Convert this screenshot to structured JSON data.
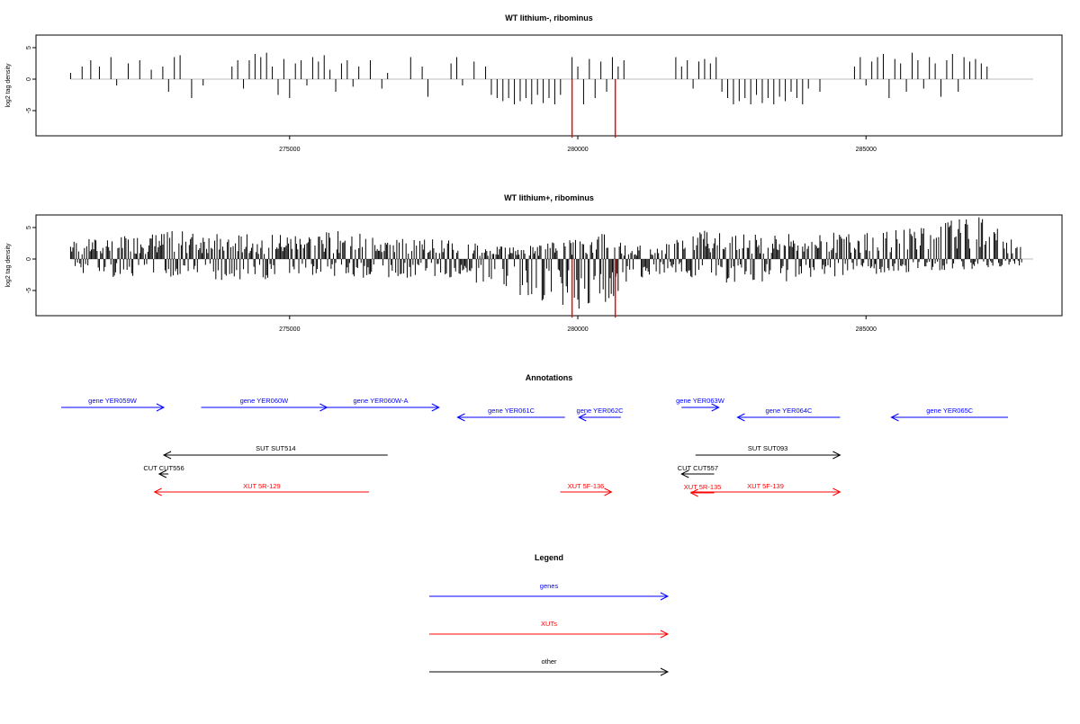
{
  "chart_data": [
    {
      "type": "bar",
      "title": "WT lithium-, ribominus",
      "ylabel": "log2 tag density",
      "xlabel": "",
      "xlim": [
        270600,
        288400
      ],
      "ylim": [
        -9,
        7
      ],
      "yticks": [
        5,
        0,
        -5
      ],
      "xticks": [
        275000,
        280000,
        285000
      ],
      "xtick_labels": [
        "275000",
        "280000",
        "285000"
      ],
      "baseline": {
        "from": 271200,
        "to": 287900
      },
      "series": [
        {
          "color": "#000000",
          "values": "sparse black spikes between ~271200 and ~287100, positive and negative, mostly within -5..+4",
          "sampled": [
            [
              271200,
              1
            ],
            [
              271400,
              2
            ],
            [
              271550,
              3
            ],
            [
              271700,
              2
            ],
            [
              271900,
              3.5
            ],
            [
              272000,
              -1
            ],
            [
              272200,
              2.5
            ],
            [
              272400,
              3
            ],
            [
              272600,
              1.5
            ],
            [
              272800,
              2
            ],
            [
              272900,
              -2
            ],
            [
              273000,
              3.5
            ],
            [
              273100,
              3.8
            ],
            [
              273300,
              -3
            ],
            [
              273500,
              -1
            ],
            [
              274000,
              2
            ],
            [
              274100,
              3
            ],
            [
              274200,
              -1.5
            ],
            [
              274300,
              3
            ],
            [
              274400,
              4
            ],
            [
              274500,
              3.5
            ],
            [
              274600,
              4.2
            ],
            [
              274700,
              2
            ],
            [
              274800,
              -2.5
            ],
            [
              274900,
              3.2
            ],
            [
              275000,
              -3
            ],
            [
              275100,
              2.5
            ],
            [
              275200,
              3
            ],
            [
              275300,
              -1
            ],
            [
              275400,
              3.5
            ],
            [
              275500,
              2.8
            ],
            [
              275600,
              3.8
            ],
            [
              275700,
              1.5
            ],
            [
              275800,
              -2
            ],
            [
              275900,
              2.5
            ],
            [
              276000,
              3
            ],
            [
              276100,
              -1.2
            ],
            [
              276200,
              2
            ],
            [
              276400,
              3
            ],
            [
              276600,
              -1.5
            ],
            [
              276700,
              1
            ],
            [
              277100,
              3.5
            ],
            [
              277300,
              2
            ],
            [
              277400,
              -2.8
            ],
            [
              277800,
              2.5
            ],
            [
              277900,
              3.5
            ],
            [
              278000,
              -1
            ],
            [
              278200,
              2.8
            ],
            [
              278400,
              2
            ],
            [
              278500,
              -2.5
            ],
            [
              278600,
              -3
            ],
            [
              278700,
              -3.5
            ],
            [
              278800,
              -3
            ],
            [
              278900,
              -4
            ],
            [
              279000,
              -3.5
            ],
            [
              279100,
              -3
            ],
            [
              279200,
              -4
            ],
            [
              279300,
              -2.5
            ],
            [
              279400,
              -3.8
            ],
            [
              279500,
              -3
            ],
            [
              279600,
              -4
            ],
            [
              279700,
              -2.5
            ],
            [
              279900,
              3.5
            ],
            [
              280000,
              2
            ],
            [
              280100,
              -4
            ],
            [
              280200,
              3.2
            ],
            [
              280300,
              -3
            ],
            [
              280400,
              2.8
            ],
            [
              280500,
              -2
            ],
            [
              280600,
              3.5
            ],
            [
              280700,
              2
            ],
            [
              280800,
              3
            ],
            [
              281700,
              3.5
            ],
            [
              281800,
              2
            ],
            [
              281900,
              3
            ],
            [
              282000,
              -1.5
            ],
            [
              282100,
              2.8
            ],
            [
              282200,
              3.2
            ],
            [
              282300,
              2.5
            ],
            [
              282400,
              3.5
            ],
            [
              282500,
              -2
            ],
            [
              282600,
              -3
            ],
            [
              282700,
              -4
            ],
            [
              282800,
              -3.5
            ],
            [
              282900,
              -3
            ],
            [
              283000,
              -4
            ],
            [
              283100,
              -2.5
            ],
            [
              283200,
              -3.8
            ],
            [
              283300,
              -3
            ],
            [
              283400,
              -4
            ],
            [
              283500,
              -2.8
            ],
            [
              283600,
              -3.5
            ],
            [
              283700,
              -2
            ],
            [
              283800,
              -3
            ],
            [
              283900,
              -4
            ],
            [
              284000,
              -1.5
            ],
            [
              284200,
              -2
            ],
            [
              284800,
              2
            ],
            [
              284900,
              3.5
            ],
            [
              285000,
              -1
            ],
            [
              285100,
              2.8
            ],
            [
              285200,
              3.5
            ],
            [
              285300,
              4
            ],
            [
              285400,
              -3
            ],
            [
              285500,
              3.2
            ],
            [
              285600,
              2.5
            ],
            [
              285700,
              -2
            ],
            [
              285800,
              4.2
            ],
            [
              285900,
              3
            ],
            [
              286000,
              -1.5
            ],
            [
              286100,
              3.5
            ],
            [
              286200,
              2.5
            ],
            [
              286300,
              -2.8
            ],
            [
              286400,
              3
            ],
            [
              286500,
              4
            ],
            [
              286600,
              -2
            ],
            [
              286700,
              3.5
            ],
            [
              286800,
              2.8
            ],
            [
              286900,
              3.2
            ],
            [
              287000,
              2.5
            ],
            [
              287100,
              2
            ]
          ]
        },
        {
          "color": "#ff0000",
          "values": [
            [
              279900,
              -9.3
            ],
            [
              280650,
              -9.3
            ]
          ]
        }
      ]
    },
    {
      "type": "bar",
      "title": "WT lithium+, ribominus",
      "ylabel": "log2 tag density",
      "xlabel": "",
      "xlim": [
        270600,
        288400
      ],
      "ylim": [
        -9,
        7
      ],
      "yticks": [
        5,
        0,
        -5
      ],
      "xticks": [
        275000,
        280000,
        285000
      ],
      "xtick_labels": [
        "275000",
        "280000",
        "285000"
      ],
      "baseline": {
        "from": 271200,
        "to": 287900
      },
      "series": [
        {
          "color": "#000000",
          "values": "dense black spikes across the region, mostly within -6..+5, up to +7 near 287000",
          "profile": [
            [
              271200,
              3,
              -2
            ],
            [
              272000,
              3.5,
              -3
            ],
            [
              273000,
              4.5,
              -3
            ],
            [
              274000,
              4,
              -3.5
            ],
            [
              275000,
              4,
              -3
            ],
            [
              276000,
              4.5,
              -3
            ],
            [
              277000,
              3.5,
              -3
            ],
            [
              278000,
              3,
              -3
            ],
            [
              278500,
              2,
              -5
            ],
            [
              279000,
              2,
              -6
            ],
            [
              279800,
              3,
              -8
            ],
            [
              280500,
              4.5,
              -8.5
            ],
            [
              280900,
              2,
              -4
            ],
            [
              281600,
              3,
              -2
            ],
            [
              282000,
              5,
              -3
            ],
            [
              283000,
              4,
              -4.5
            ],
            [
              284000,
              4,
              -3
            ],
            [
              285000,
              5,
              -2.5
            ],
            [
              286000,
              6,
              -2
            ],
            [
              287000,
              7,
              -1.5
            ],
            [
              287700,
              3,
              -1
            ]
          ]
        },
        {
          "color": "#ff0000",
          "values": [
            [
              279900,
              -9.3
            ],
            [
              280650,
              -9.3
            ]
          ]
        }
      ]
    }
  ],
  "annotations": {
    "title": "Annotations",
    "items": [
      {
        "label": "gene YER059W",
        "color": "#0000ff",
        "from": 271200,
        "to": 273400,
        "dir": "right",
        "row": 0
      },
      {
        "label": "gene YER060W",
        "color": "#0000ff",
        "from": 274200,
        "to": 276900,
        "dir": "right",
        "row": 0
      },
      {
        "label": "gene YER060W-A",
        "color": "#0000ff",
        "from": 276800,
        "to": 279300,
        "dir": "right",
        "row": 0
      },
      {
        "label": "gene YER061C",
        "color": "#0000ff",
        "from": 279700,
        "to": 282000,
        "dir": "left",
        "row": 1
      },
      {
        "label": "gene YER062C",
        "color": "#0000ff",
        "from": 282300,
        "to": 283200,
        "dir": "left",
        "row": 1
      },
      {
        "label": "gene YER063W",
        "color": "#0000ff",
        "from": 284500,
        "to": 285300,
        "dir": "right",
        "row": 0
      },
      {
        "label": "gene YER064C",
        "color": "#0000ff",
        "from": 285700,
        "to": 287900,
        "dir": "left",
        "row": 1
      },
      {
        "label": "gene YER065C",
        "color": "#0000ff",
        "from": 289000,
        "to": 291500,
        "dir": "left",
        "row": 1
      },
      {
        "label": "SUT SUT514",
        "color": "#000000",
        "from": 273400,
        "to": 278200,
        "dir": "left",
        "row": 2
      },
      {
        "label": "SUT SUT093",
        "color": "#000000",
        "from": 284800,
        "to": 287900,
        "dir": "right",
        "row": 2
      },
      {
        "label": "CUT CUT556",
        "color": "#000000",
        "from": 273300,
        "to": 273500,
        "dir": "left",
        "row": 3
      },
      {
        "label": "CUT CUT557",
        "color": "#000000",
        "from": 284500,
        "to": 285200,
        "dir": "left",
        "row": 3
      },
      {
        "label": "XUT 5R-129",
        "color": "#ff0000",
        "from": 273200,
        "to": 277800,
        "dir": "left",
        "row": 4
      },
      {
        "label": "XUT 5F-136",
        "color": "#ff0000",
        "from": 281900,
        "to": 283000,
        "dir": "right",
        "row": 4
      },
      {
        "label": "XUT 5F-139",
        "color": "#ff0000",
        "from": 284700,
        "to": 287900,
        "dir": "right",
        "row": 4
      },
      {
        "label": "XUT 5R-135",
        "color": "#ff0000",
        "from": 284700,
        "to": 285200,
        "dir": "left",
        "row": 5
      }
    ]
  },
  "legend": {
    "title": "Legend",
    "items": [
      {
        "label": "genes",
        "color": "#0000ff"
      },
      {
        "label": "XUTs",
        "color": "#ff0000"
      },
      {
        "label": "other",
        "color": "#000000"
      }
    ]
  }
}
